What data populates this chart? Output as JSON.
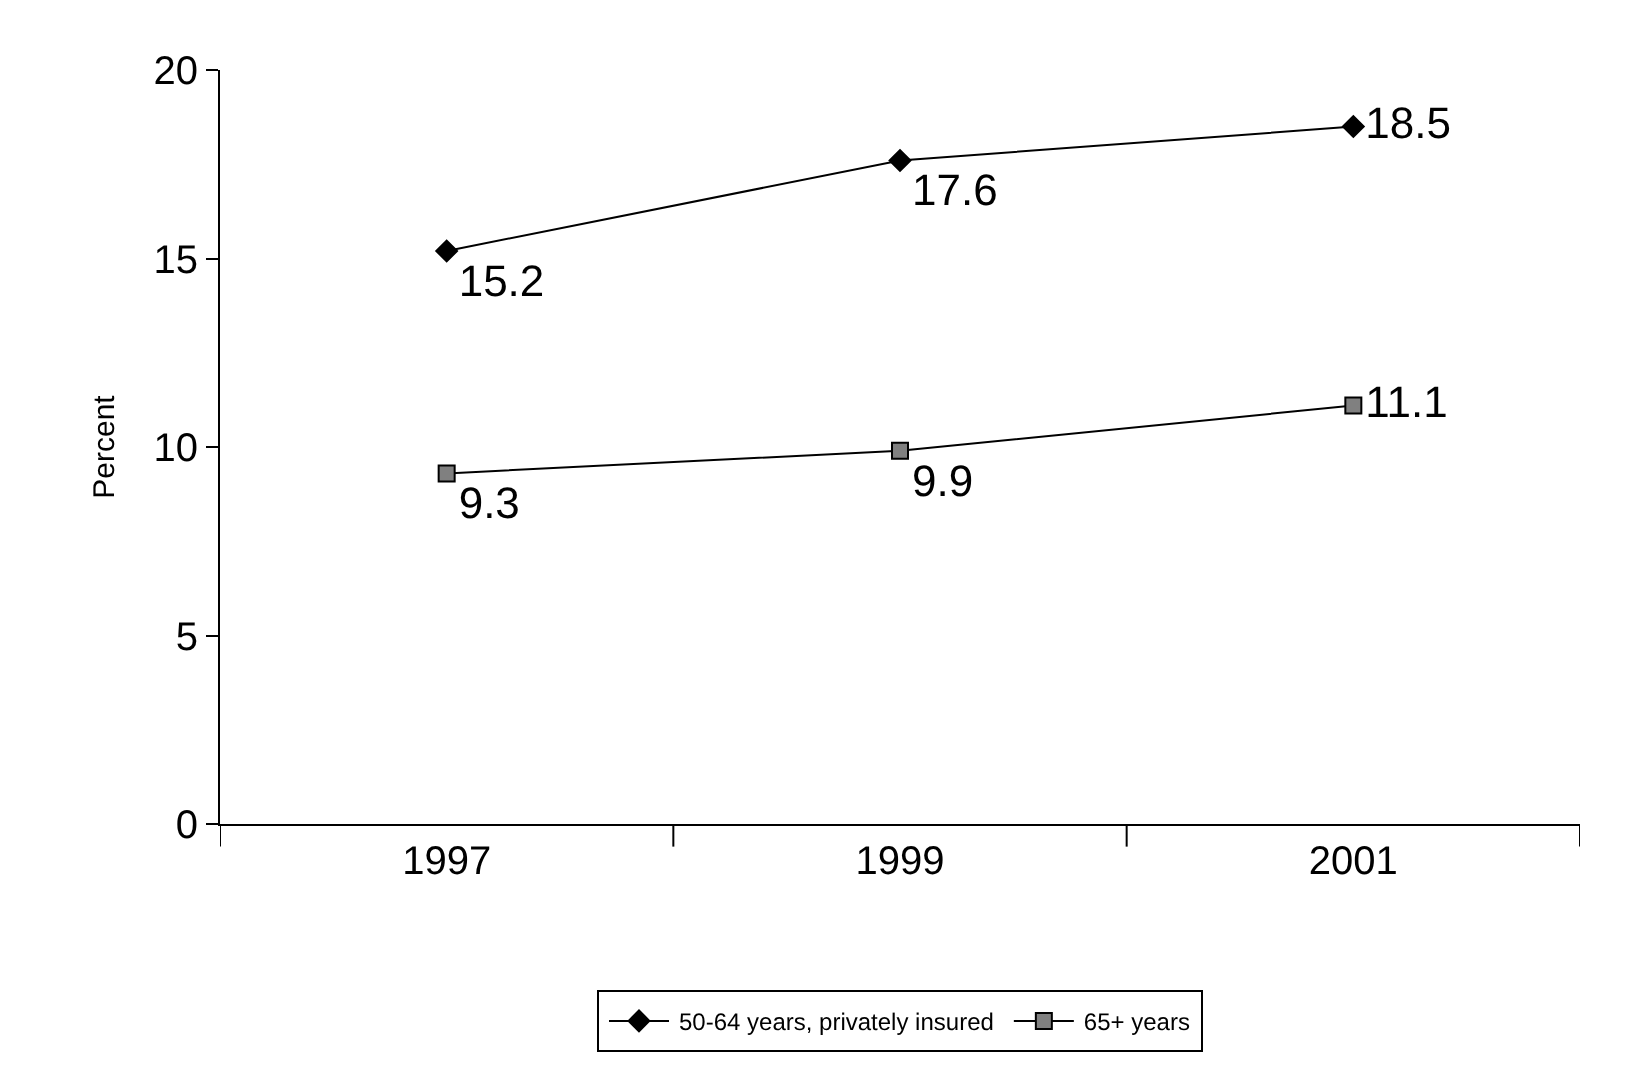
{
  "chart_data": {
    "type": "line",
    "ylabel": "Percent",
    "categories": [
      "1997",
      "1999",
      "2001"
    ],
    "series": [
      {
        "name": "50-64 years, privately insured",
        "color": "#000000",
        "marker": "diamond",
        "values": [
          15.2,
          17.6,
          18.5
        ]
      },
      {
        "name": "65+ years",
        "color": "#808080",
        "marker": "square",
        "values": [
          9.3,
          9.9,
          11.1
        ]
      }
    ],
    "ylim": [
      0,
      20
    ],
    "yticks": [
      0,
      5,
      10,
      15,
      20
    ],
    "legend": "bottom",
    "data_labels": true,
    "line_style": "solid"
  }
}
